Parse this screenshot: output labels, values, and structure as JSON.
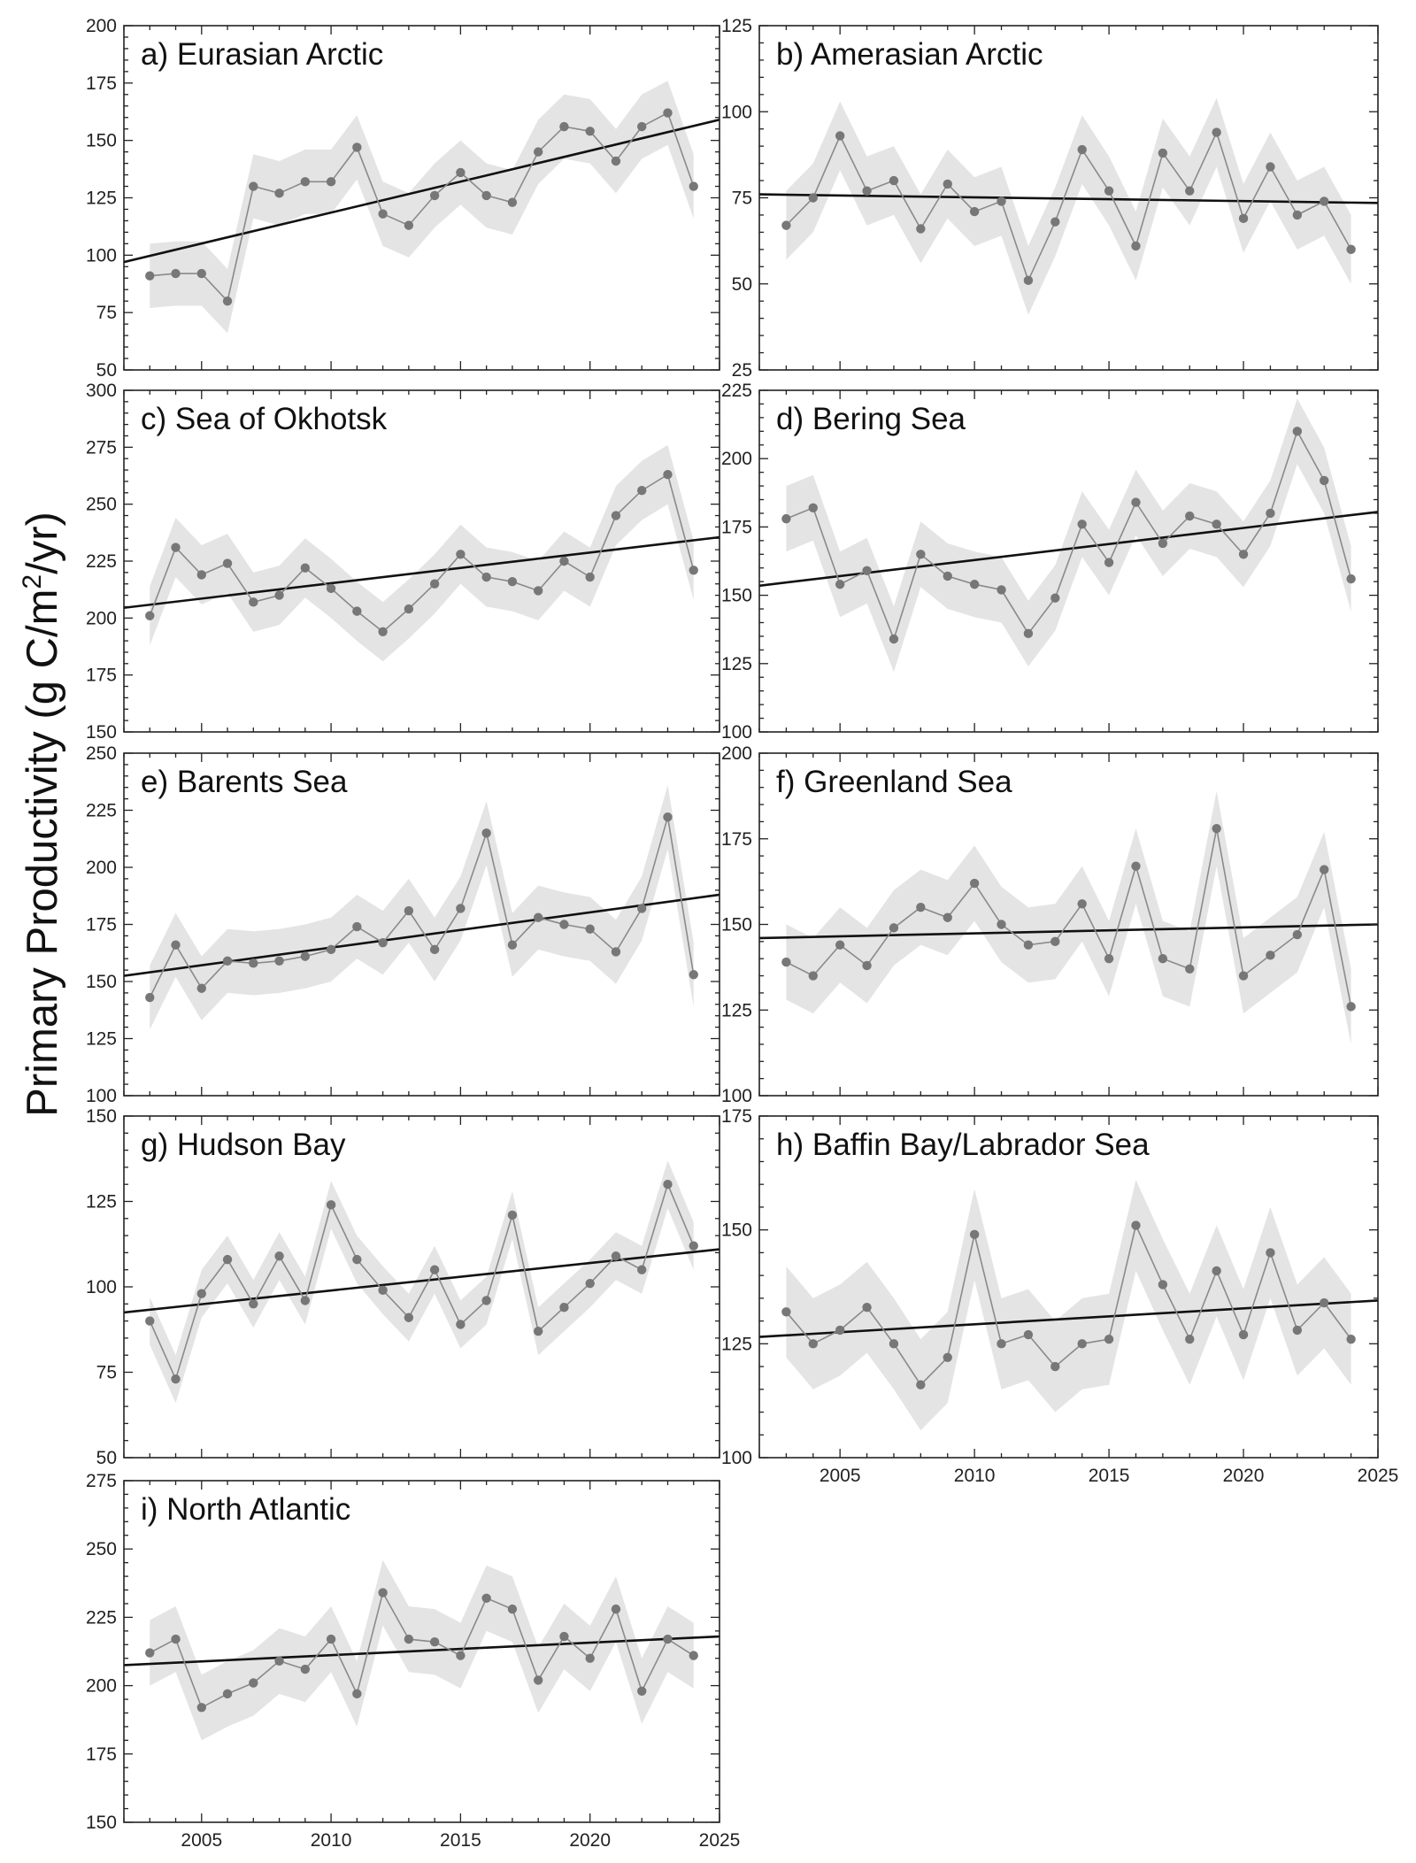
{
  "figure": {
    "ylabel_text": "Primary Productivity (g C/m",
    "ylabel_sup": "2",
    "ylabel_tail": "/yr)"
  },
  "colors": {
    "band": "#e4e4e4",
    "series_line": "#8a8a8a",
    "point": "#777777",
    "trend": "#111111",
    "axis": "#222222"
  },
  "chart_data": [
    {
      "type": "line",
      "title": "a) Eurasian Arctic",
      "xlim": [
        2002,
        2025
      ],
      "ylim": [
        50,
        200
      ],
      "yticks": [
        50,
        75,
        100,
        125,
        150,
        175,
        200
      ],
      "xticks": [
        2005,
        2010,
        2015,
        2020,
        2025
      ],
      "show_xticklabels": false,
      "x": [
        2003,
        2004,
        2005,
        2006,
        2007,
        2008,
        2009,
        2010,
        2011,
        2012,
        2013,
        2014,
        2015,
        2016,
        2017,
        2018,
        2019,
        2020,
        2021,
        2022,
        2023,
        2024
      ],
      "values": [
        91,
        92,
        92,
        80,
        130,
        127,
        132,
        132,
        147,
        118,
        113,
        126,
        136,
        126,
        123,
        145,
        156,
        154,
        141,
        156,
        162,
        130
      ],
      "band": 14,
      "trend": [
        97,
        159
      ]
    },
    {
      "type": "line",
      "title": "b) Amerasian Arctic",
      "xlim": [
        2002,
        2025
      ],
      "ylim": [
        25,
        125
      ],
      "yticks": [
        25,
        50,
        75,
        100,
        125
      ],
      "xticks": [
        2005,
        2010,
        2015,
        2020,
        2025
      ],
      "show_xticklabels": false,
      "x": [
        2003,
        2004,
        2005,
        2006,
        2007,
        2008,
        2009,
        2010,
        2011,
        2012,
        2013,
        2014,
        2015,
        2016,
        2017,
        2018,
        2019,
        2020,
        2021,
        2022,
        2023,
        2024
      ],
      "values": [
        67,
        75,
        93,
        77,
        80,
        66,
        79,
        71,
        74,
        51,
        68,
        89,
        77,
        61,
        88,
        77,
        94,
        69,
        84,
        70,
        74,
        60
      ],
      "band": 10,
      "trend": [
        76,
        73.5
      ]
    },
    {
      "type": "line",
      "title": "c) Sea of Okhotsk",
      "xlim": [
        2002,
        2025
      ],
      "ylim": [
        150,
        300
      ],
      "yticks": [
        150,
        175,
        200,
        225,
        250,
        275,
        300
      ],
      "xticks": [
        2005,
        2010,
        2015,
        2020,
        2025
      ],
      "show_xticklabels": false,
      "x": [
        2003,
        2004,
        2005,
        2006,
        2007,
        2008,
        2009,
        2010,
        2011,
        2012,
        2013,
        2014,
        2015,
        2016,
        2017,
        2018,
        2019,
        2020,
        2021,
        2022,
        2023,
        2024
      ],
      "values": [
        201,
        231,
        219,
        224,
        207,
        210,
        222,
        213,
        203,
        194,
        204,
        215,
        228,
        218,
        216,
        212,
        225,
        218,
        245,
        256,
        263,
        221
      ],
      "band": 13,
      "trend": [
        204.5,
        235.5
      ]
    },
    {
      "type": "line",
      "title": "d) Bering Sea",
      "xlim": [
        2002,
        2025
      ],
      "ylim": [
        100,
        225
      ],
      "yticks": [
        100,
        125,
        150,
        175,
        200,
        225
      ],
      "xticks": [
        2005,
        2010,
        2015,
        2020,
        2025
      ],
      "show_xticklabels": false,
      "x": [
        2003,
        2004,
        2005,
        2006,
        2007,
        2008,
        2009,
        2010,
        2011,
        2012,
        2013,
        2014,
        2015,
        2016,
        2017,
        2018,
        2019,
        2020,
        2021,
        2022,
        2023,
        2024
      ],
      "values": [
        178,
        182,
        154,
        159,
        134,
        165,
        157,
        154,
        152,
        136,
        149,
        176,
        162,
        184,
        169,
        179,
        176,
        165,
        180,
        210,
        192,
        156
      ],
      "band": 12,
      "trend": [
        153.5,
        180.5
      ]
    },
    {
      "type": "line",
      "title": "e) Barents Sea",
      "xlim": [
        2002,
        2025
      ],
      "ylim": [
        100,
        250
      ],
      "yticks": [
        100,
        125,
        150,
        175,
        200,
        225,
        250
      ],
      "xticks": [
        2005,
        2010,
        2015,
        2020,
        2025
      ],
      "show_xticklabels": false,
      "x": [
        2003,
        2004,
        2005,
        2006,
        2007,
        2008,
        2009,
        2010,
        2011,
        2012,
        2013,
        2014,
        2015,
        2016,
        2017,
        2018,
        2019,
        2020,
        2021,
        2022,
        2023,
        2024
      ],
      "values": [
        143,
        166,
        147,
        159,
        158,
        159,
        161,
        164,
        174,
        167,
        181,
        164,
        182,
        215,
        166,
        178,
        175,
        173,
        163,
        182,
        222,
        153
      ],
      "band": 14,
      "trend": [
        152.5,
        188
      ]
    },
    {
      "type": "line",
      "title": "f) Greenland Sea",
      "xlim": [
        2002,
        2025
      ],
      "ylim": [
        100,
        200
      ],
      "yticks": [
        100,
        125,
        150,
        175,
        200
      ],
      "xticks": [
        2005,
        2010,
        2015,
        2020,
        2025
      ],
      "show_xticklabels": false,
      "x": [
        2003,
        2004,
        2005,
        2006,
        2007,
        2008,
        2009,
        2010,
        2011,
        2012,
        2013,
        2014,
        2015,
        2016,
        2017,
        2018,
        2019,
        2020,
        2021,
        2022,
        2023,
        2024
      ],
      "values": [
        139,
        135,
        144,
        138,
        149,
        155,
        152,
        162,
        150,
        144,
        145,
        156,
        140,
        167,
        140,
        137,
        178,
        135,
        141,
        147,
        166,
        126
      ],
      "band": 11,
      "trend": [
        146,
        150
      ]
    },
    {
      "type": "line",
      "title": "g) Hudson Bay",
      "xlim": [
        2002,
        2025
      ],
      "ylim": [
        50,
        150
      ],
      "yticks": [
        50,
        75,
        100,
        125,
        150
      ],
      "xticks": [
        2005,
        2010,
        2015,
        2020,
        2025
      ],
      "show_xticklabels": false,
      "x": [
        2003,
        2004,
        2005,
        2006,
        2007,
        2008,
        2009,
        2010,
        2011,
        2012,
        2013,
        2014,
        2015,
        2016,
        2017,
        2018,
        2019,
        2020,
        2021,
        2022,
        2023,
        2024
      ],
      "values": [
        90,
        73,
        98,
        108,
        95,
        109,
        96,
        124,
        108,
        99,
        91,
        105,
        89,
        96,
        121,
        87,
        94,
        101,
        109,
        105,
        130,
        112
      ],
      "band": 7,
      "trend": [
        92.5,
        111
      ]
    },
    {
      "type": "line",
      "title": "h) Baffin Bay/Labrador Sea",
      "xlim": [
        2002,
        2025
      ],
      "ylim": [
        100,
        175
      ],
      "yticks": [
        100,
        125,
        150,
        175
      ],
      "xticks": [
        2005,
        2010,
        2015,
        2020,
        2025
      ],
      "show_xticklabels": true,
      "x": [
        2003,
        2004,
        2005,
        2006,
        2007,
        2008,
        2009,
        2010,
        2011,
        2012,
        2013,
        2014,
        2015,
        2016,
        2017,
        2018,
        2019,
        2020,
        2021,
        2022,
        2023,
        2024
      ],
      "values": [
        132,
        125,
        128,
        133,
        125,
        116,
        122,
        149,
        125,
        127,
        120,
        125,
        126,
        151,
        138,
        126,
        141,
        127,
        145,
        128,
        134,
        126
      ],
      "band": 10,
      "trend": [
        126.5,
        134.5
      ]
    },
    {
      "type": "line",
      "title": "i) North Atlantic",
      "xlim": [
        2002,
        2025
      ],
      "ylim": [
        150,
        275
      ],
      "yticks": [
        150,
        175,
        200,
        225,
        250,
        275
      ],
      "xticks": [
        2005,
        2010,
        2015,
        2020,
        2025
      ],
      "show_xticklabels": true,
      "x": [
        2003,
        2004,
        2005,
        2006,
        2007,
        2008,
        2009,
        2010,
        2011,
        2012,
        2013,
        2014,
        2015,
        2016,
        2017,
        2018,
        2019,
        2020,
        2021,
        2022,
        2023,
        2024
      ],
      "values": [
        212,
        217,
        192,
        197,
        201,
        209,
        206,
        217,
        197,
        234,
        217,
        216,
        211,
        232,
        228,
        202,
        218,
        210,
        228,
        198,
        217,
        211
      ],
      "band": 12,
      "trend": [
        207.5,
        218
      ]
    }
  ]
}
